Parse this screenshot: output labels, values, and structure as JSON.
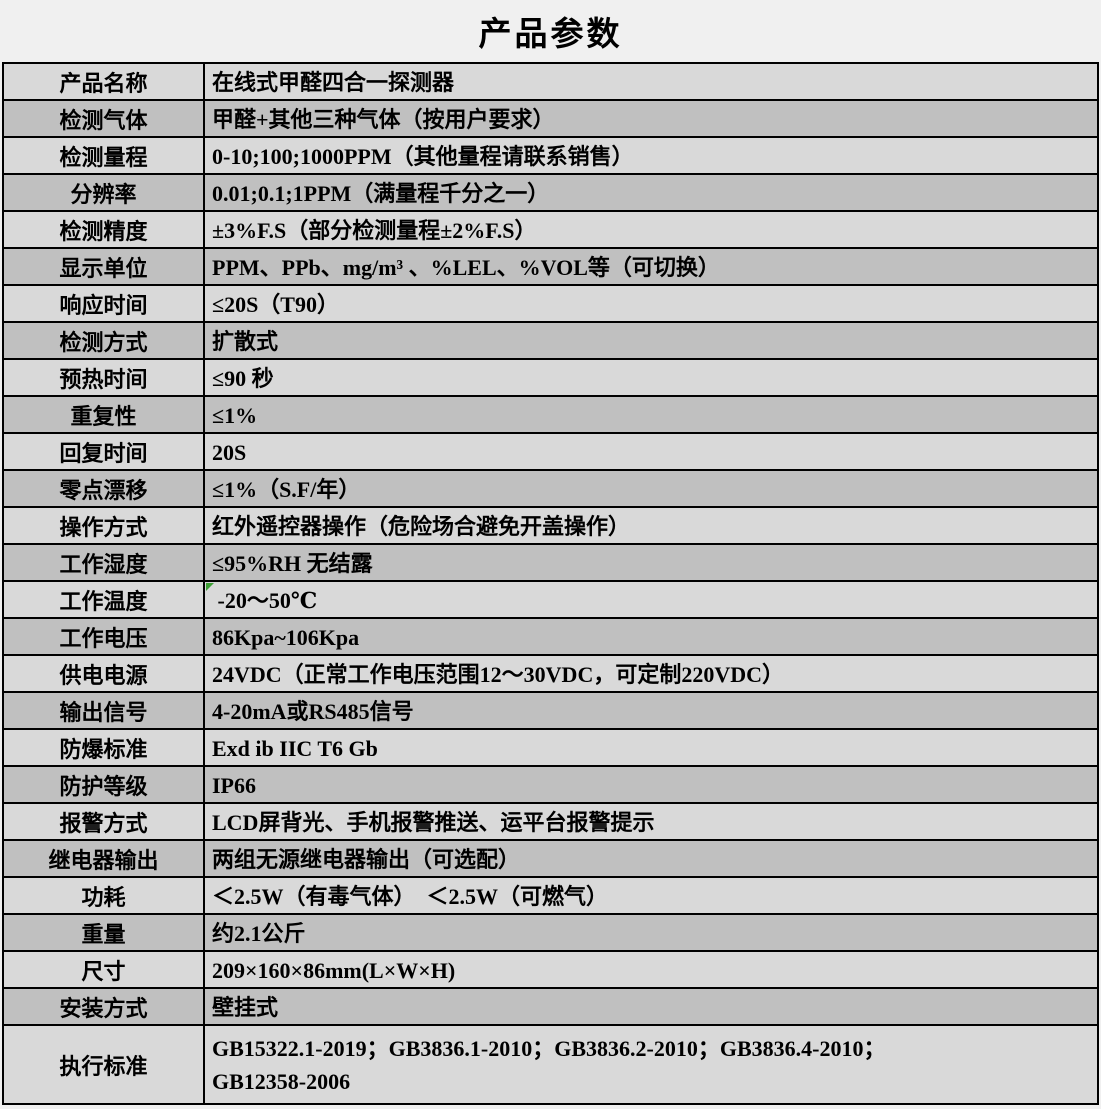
{
  "page": {
    "title": "产品参数",
    "background_color": "#f0f0f0",
    "border_color": "#000000"
  },
  "table": {
    "row_color_light": "#d9d9d9",
    "row_color_dark": "#c0c0c0",
    "note_marker_color": "#3da035",
    "rows": [
      {
        "label": "产品名称",
        "value": "在线式甲醛四合一探测器"
      },
      {
        "label": "检测气体",
        "value": "甲醛+其他三种气体（按用户要求）"
      },
      {
        "label": "检测量程",
        "value": "0-10;100;1000PPM（其他量程请联系销售）"
      },
      {
        "label": "分辨率",
        "value": "0.01;0.1;1PPM（满量程千分之一）"
      },
      {
        "label": "检测精度",
        "value": "±3%F.S（部分检测量程±2%F.S）"
      },
      {
        "label": "显示单位",
        "value": "PPM、PPb、mg/m³ 、%LEL、%VOL等（可切换）"
      },
      {
        "label": "响应时间",
        "value": "≤20S（T90）"
      },
      {
        "label": "检测方式",
        "value": "扩散式"
      },
      {
        "label": "预热时间",
        "value": "≤90 秒"
      },
      {
        "label": "重复性",
        "value": "≤1%"
      },
      {
        "label": "回复时间",
        "value": "20S"
      },
      {
        "label": "零点漂移",
        "value": "≤1%（S.F/年）"
      },
      {
        "label": "操作方式",
        "value": "红外遥控器操作（危险场合避免开盖操作）"
      },
      {
        "label": "工作湿度",
        "value": "≤95%RH 无结露"
      },
      {
        "label": "工作温度",
        "value": " -20～50℃",
        "marker": true
      },
      {
        "label": "工作电压",
        "value": "86Kpa~106Kpa"
      },
      {
        "label": "供电电源",
        "value": "24VDC（正常工作电压范围12～30VDC，可定制220VDC）"
      },
      {
        "label": "输出信号",
        "value": "4-20mA或RS485信号"
      },
      {
        "label": "防爆标准",
        "value": "Exd ib IIC T6 Gb"
      },
      {
        "label": "防护等级",
        "value": "IP66"
      },
      {
        "label": "报警方式",
        "value": "LCD屏背光、手机报警推送、运平台报警提示"
      },
      {
        "label": "继电器输出",
        "value": "两组无源继电器输出（可选配）"
      },
      {
        "label": "功耗",
        "value": "＜2.5W（有毒气体）　＜2.5W（可燃气）"
      },
      {
        "label": "重量",
        "value": "约2.1公斤"
      },
      {
        "label": "尺寸",
        "value": "209×160×86mm(L×W×H)"
      },
      {
        "label": "安装方式",
        "value": "壁挂式"
      },
      {
        "label": "执行标准",
        "value": "GB15322.1-2019；GB3836.1-2010；GB3836.2-2010；GB3836.4-2010；\nGB12358-2006",
        "tall": true
      }
    ]
  }
}
